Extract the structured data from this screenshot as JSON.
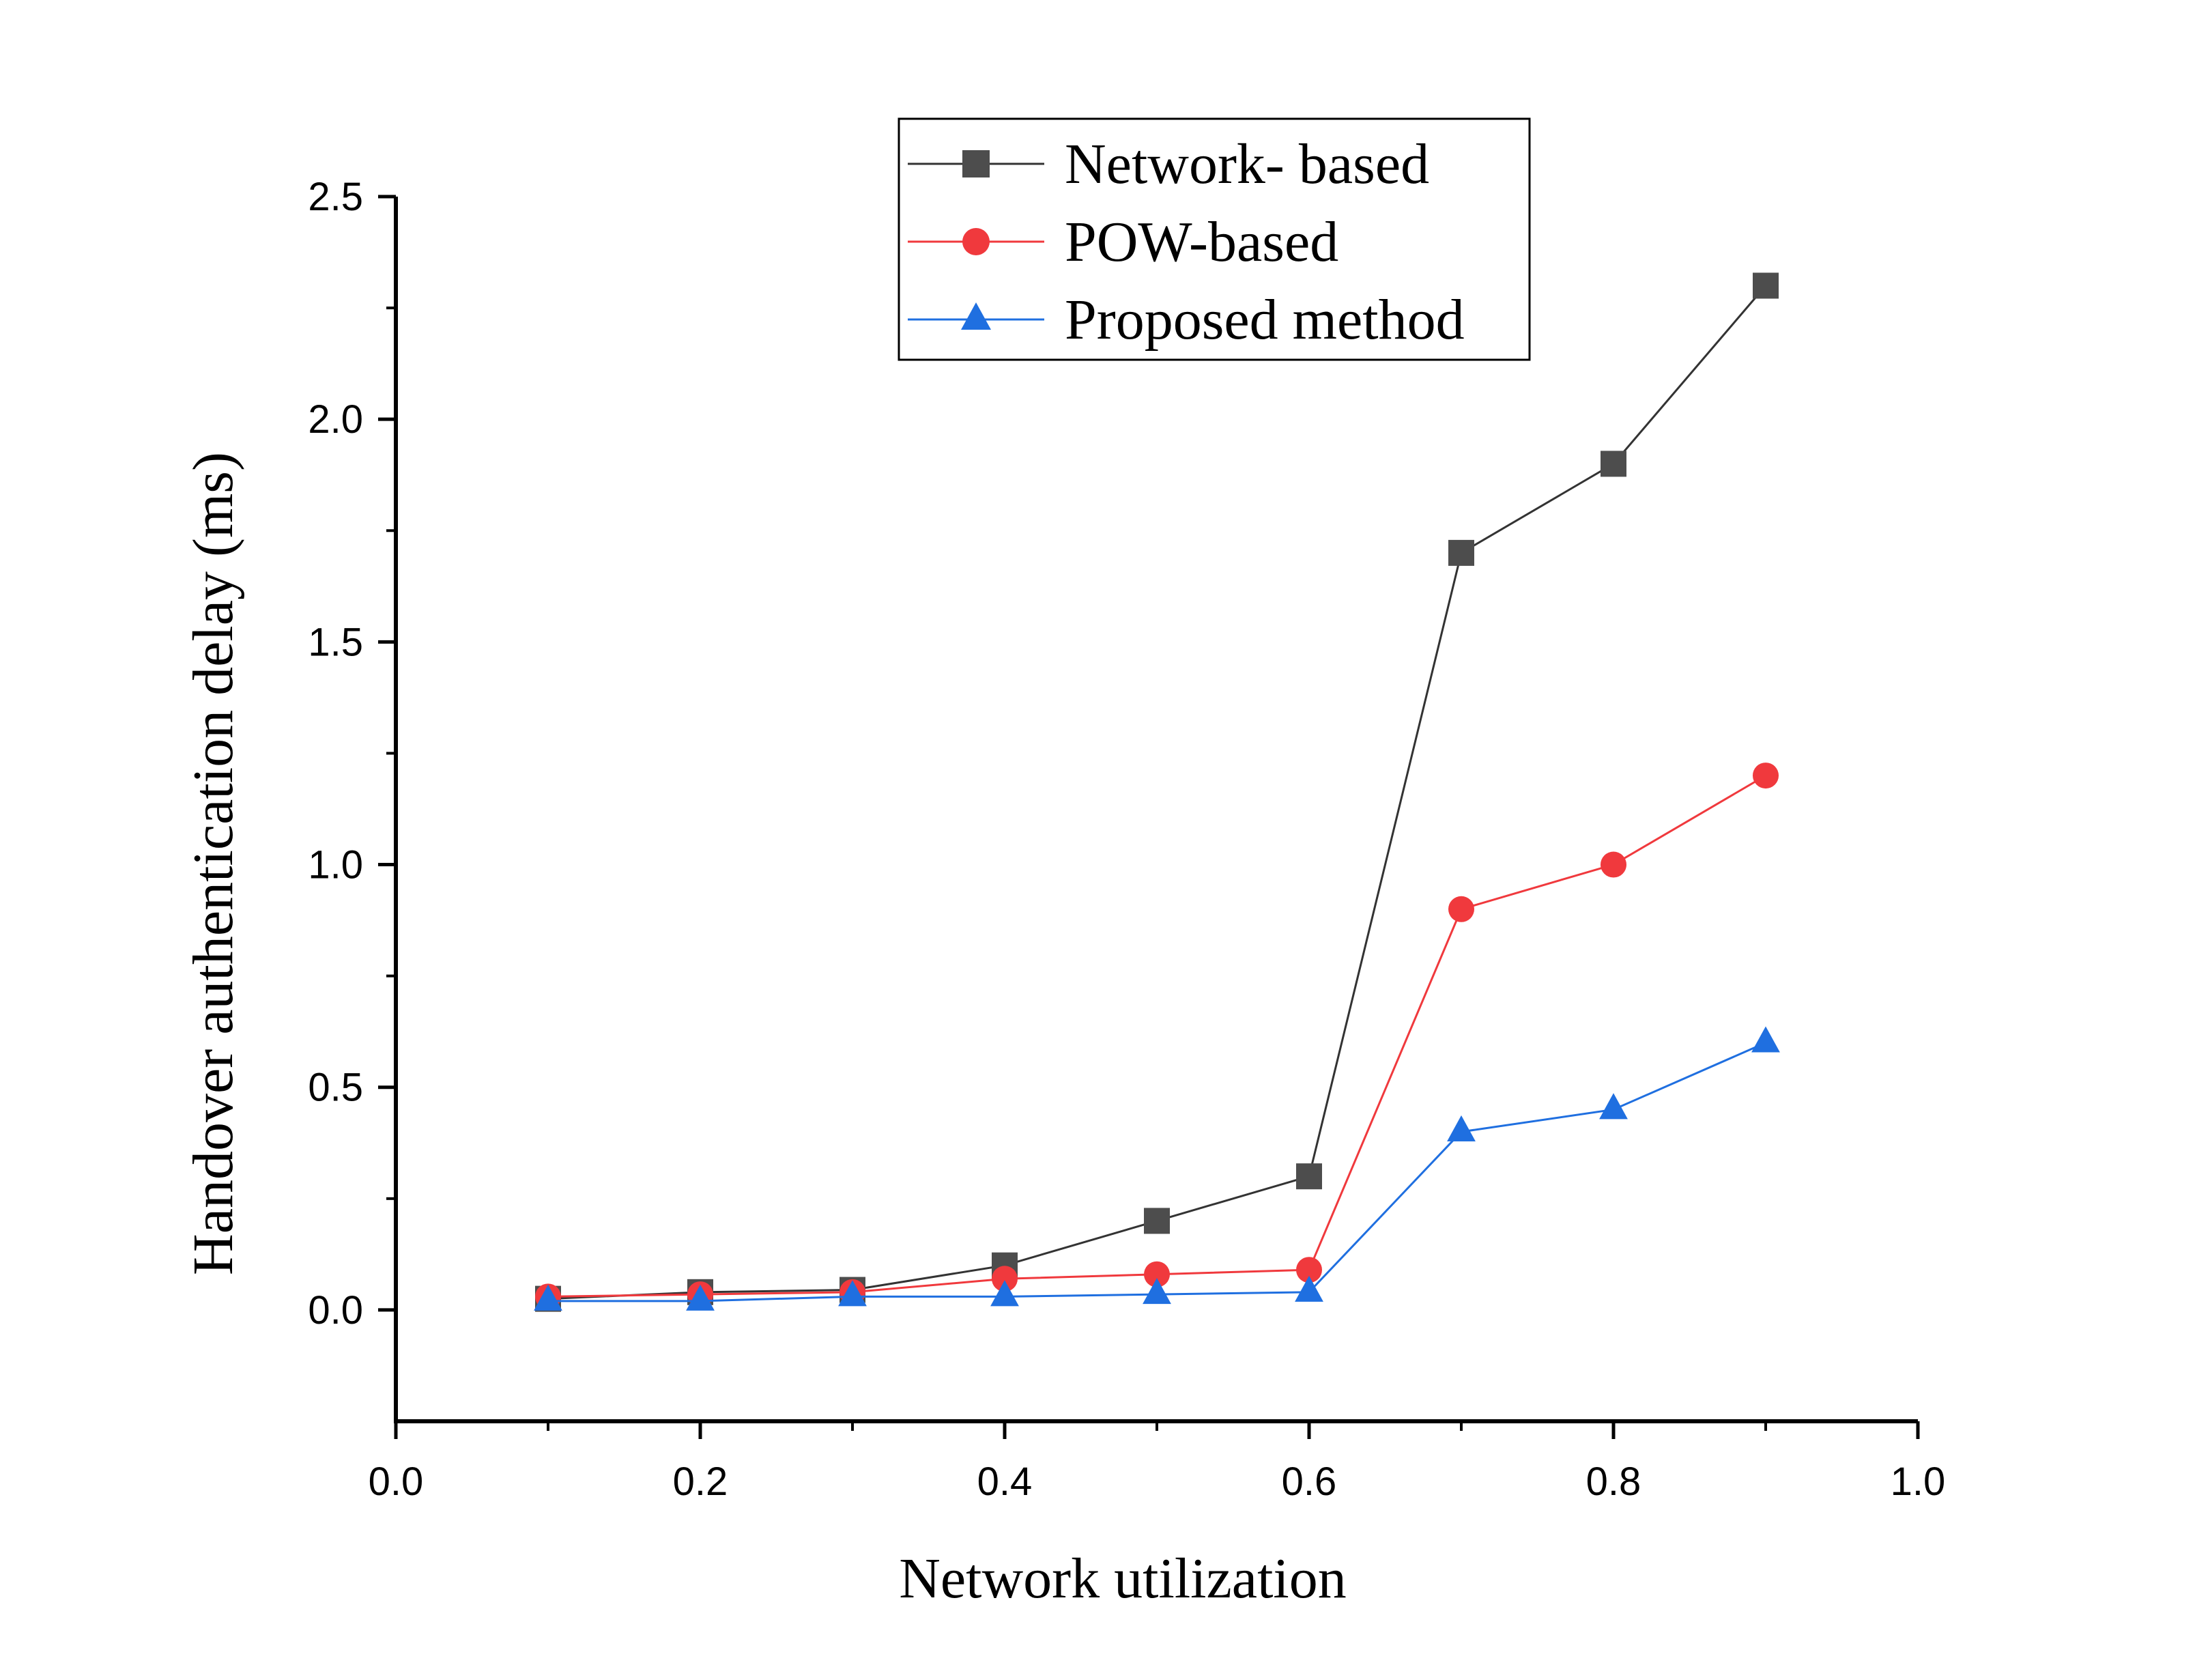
{
  "chart_data": {
    "type": "line",
    "title": "",
    "xlabel": "Network utilization",
    "ylabel": "Handover authentication delay (ms)",
    "xlim": [
      0.0,
      1.0
    ],
    "ylim": [
      -0.25,
      2.5
    ],
    "x_ticks": [
      0.0,
      0.2,
      0.4,
      0.6,
      0.8,
      1.0
    ],
    "x_tick_labels": [
      "0.0",
      "0.2",
      "0.4",
      "0.6",
      "0.8",
      "1.0"
    ],
    "y_ticks": [
      0.0,
      0.5,
      1.0,
      1.5,
      2.0,
      2.5
    ],
    "y_tick_labels": [
      "0.0",
      "0.5",
      "1.0",
      "1.5",
      "2.0",
      "2.5"
    ],
    "grid": false,
    "legend_position": "top-center",
    "x": [
      0.1,
      0.2,
      0.3,
      0.4,
      0.5,
      0.6,
      0.7,
      0.8,
      0.9
    ],
    "series": [
      {
        "name": "Network- based",
        "marker": "square",
        "color": "#4d4d4d",
        "line_color": "#333333",
        "values": [
          0.025,
          0.04,
          0.045,
          0.1,
          0.2,
          0.3,
          1.7,
          1.9,
          2.3
        ]
      },
      {
        "name": "POW-based",
        "marker": "circle",
        "color": "#f0393d",
        "line_color": "#f0393d",
        "values": [
          0.03,
          0.035,
          0.04,
          0.07,
          0.08,
          0.09,
          0.9,
          1.0,
          1.2
        ]
      },
      {
        "name": "Proposed method",
        "marker": "triangle",
        "color": "#1f6fe0",
        "line_color": "#1f6fe0",
        "values": [
          0.02,
          0.02,
          0.03,
          0.03,
          0.035,
          0.04,
          0.4,
          0.45,
          0.6
        ]
      }
    ]
  }
}
